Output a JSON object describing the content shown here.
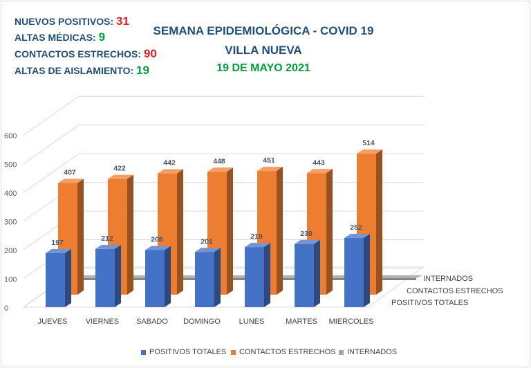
{
  "header": {
    "stats": [
      {
        "label": "NUEVOS POSITIVOS:",
        "value": "31",
        "color": "#e02020"
      },
      {
        "label": "ALTAS MÉDICAS:",
        "value": "9",
        "color": "#00a03e"
      },
      {
        "label": "CONTACTOS ESTRECHOS:",
        "value": "90",
        "color": "#e02020"
      },
      {
        "label": "ALTAS DE AISLAMIENTO:",
        "value": "19",
        "color": "#00a03e"
      }
    ],
    "title_line1": "SEMANA EPIDEMIOLÓGICA - COVID 19",
    "title_line2": "VILLA NUEVA",
    "date": "19 DE MAYO 2021"
  },
  "chart_data": {
    "type": "bar",
    "categories": [
      "JUEVES",
      "VIERNES",
      "SABADO",
      "DOMINGO",
      "LUNES",
      "MARTES",
      "MIERCOLES"
    ],
    "series": [
      {
        "name": "POSITIVOS TOTALES",
        "values": [
          197,
          212,
          208,
          201,
          219,
          230,
          252
        ],
        "color": "#4472c4"
      },
      {
        "name": "CONTACTOS ESTRECHOS",
        "values": [
          407,
          422,
          442,
          448,
          451,
          443,
          514
        ],
        "color": "#ed7d31"
      },
      {
        "name": "INTERNADOS",
        "values": [
          4,
          3,
          5,
          7,
          7,
          8,
          8
        ],
        "color": "#a5a5a5"
      }
    ],
    "y_ticks": [
      "0",
      "100",
      "200",
      "300",
      "400",
      "500",
      "600"
    ],
    "ylim": [
      0,
      600
    ],
    "depth_labels": [
      "INTERNADOS",
      "CONTACTOS ESTRECHOS",
      "POSITIVOS TOTALES"
    ],
    "legend_position": "bottom",
    "grid": true
  }
}
